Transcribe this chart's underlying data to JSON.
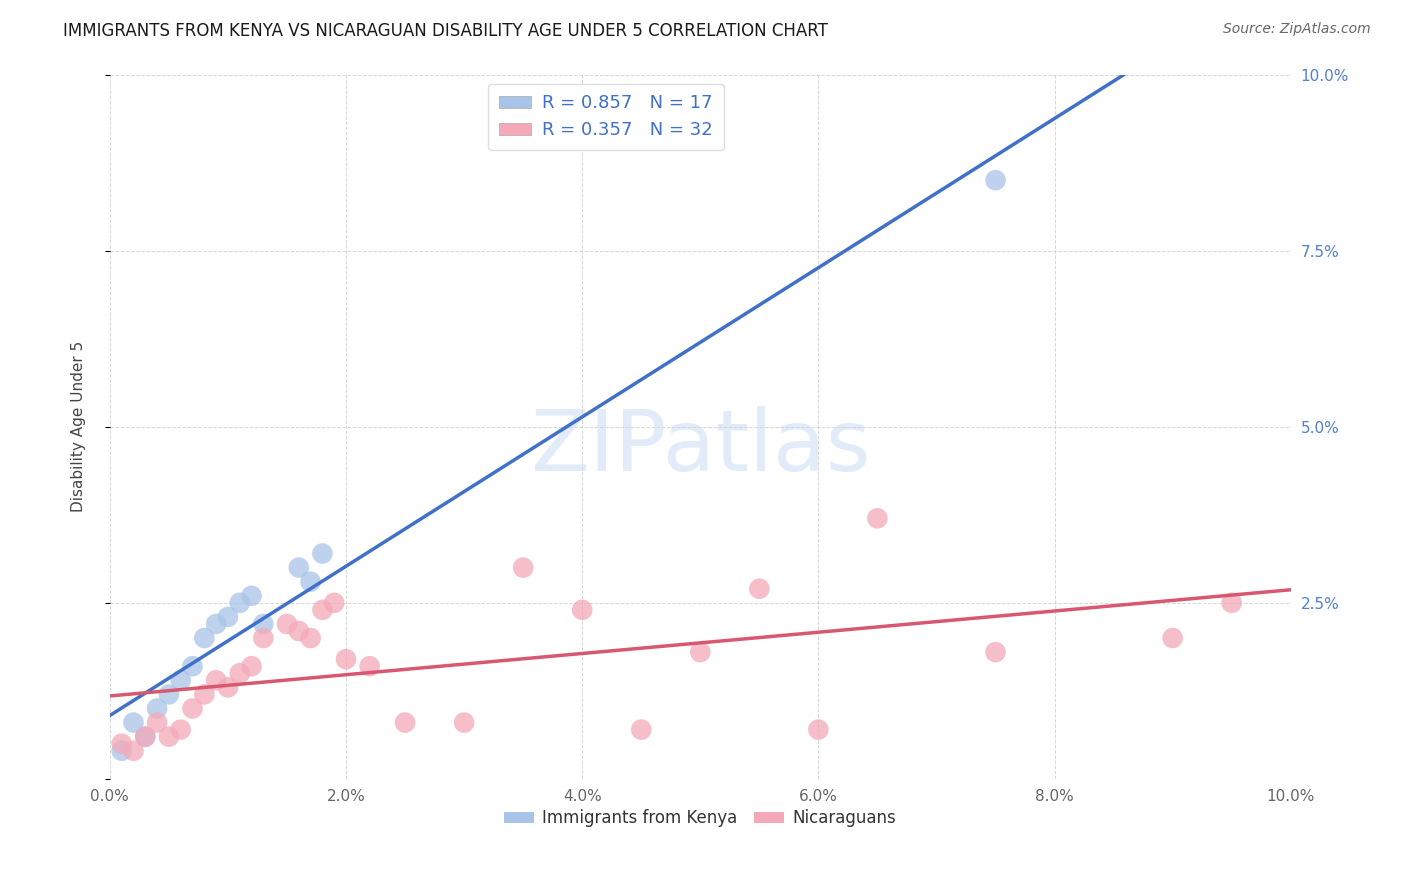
{
  "title": "IMMIGRANTS FROM KENYA VS NICARAGUAN DISABILITY AGE UNDER 5 CORRELATION CHART",
  "source": "Source: ZipAtlas.com",
  "ylabel": "Disability Age Under 5",
  "xlim": [
    0.0,
    0.1
  ],
  "ylim": [
    0.0,
    0.1
  ],
  "xticks": [
    0.0,
    0.02,
    0.04,
    0.06,
    0.08,
    0.1
  ],
  "yticks": [
    0.0,
    0.025,
    0.05,
    0.075,
    0.1
  ],
  "ytick_labels_right": [
    "",
    "2.5%",
    "5.0%",
    "7.5%",
    "10.0%"
  ],
  "legend1_R": "0.857",
  "legend1_N": "17",
  "legend2_R": "0.357",
  "legend2_N": "32",
  "kenya_color": "#a8c4e8",
  "nicaragua_color": "#f4a8b8",
  "kenya_line_color": "#4070c8",
  "nicaragua_line_color": "#d85870",
  "kenya_x": [
    0.001,
    0.002,
    0.003,
    0.004,
    0.005,
    0.006,
    0.007,
    0.008,
    0.009,
    0.01,
    0.011,
    0.012,
    0.013,
    0.016,
    0.017,
    0.018,
    0.075
  ],
  "kenya_y": [
    0.004,
    0.008,
    0.006,
    0.01,
    0.012,
    0.014,
    0.016,
    0.02,
    0.022,
    0.023,
    0.025,
    0.026,
    0.022,
    0.03,
    0.028,
    0.032,
    0.085
  ],
  "nicaragua_x": [
    0.001,
    0.002,
    0.003,
    0.004,
    0.005,
    0.006,
    0.007,
    0.008,
    0.009,
    0.01,
    0.011,
    0.012,
    0.013,
    0.015,
    0.016,
    0.017,
    0.018,
    0.019,
    0.02,
    0.022,
    0.025,
    0.03,
    0.035,
    0.04,
    0.045,
    0.05,
    0.055,
    0.06,
    0.065,
    0.075,
    0.09,
    0.095
  ],
  "nicaragua_y": [
    0.005,
    0.004,
    0.006,
    0.008,
    0.006,
    0.007,
    0.01,
    0.012,
    0.014,
    0.013,
    0.015,
    0.016,
    0.02,
    0.022,
    0.021,
    0.02,
    0.024,
    0.025,
    0.017,
    0.016,
    0.008,
    0.008,
    0.03,
    0.024,
    0.007,
    0.018,
    0.027,
    0.007,
    0.037,
    0.018,
    0.02,
    0.025
  ],
  "watermark": "ZIPatlas",
  "background_color": "#ffffff",
  "grid_color": "#cccccc",
  "kenya_line_intercept": 0.0,
  "kenya_line_slope": 0.93,
  "nic_line_intercept": 0.005,
  "nic_line_slope": 0.2
}
